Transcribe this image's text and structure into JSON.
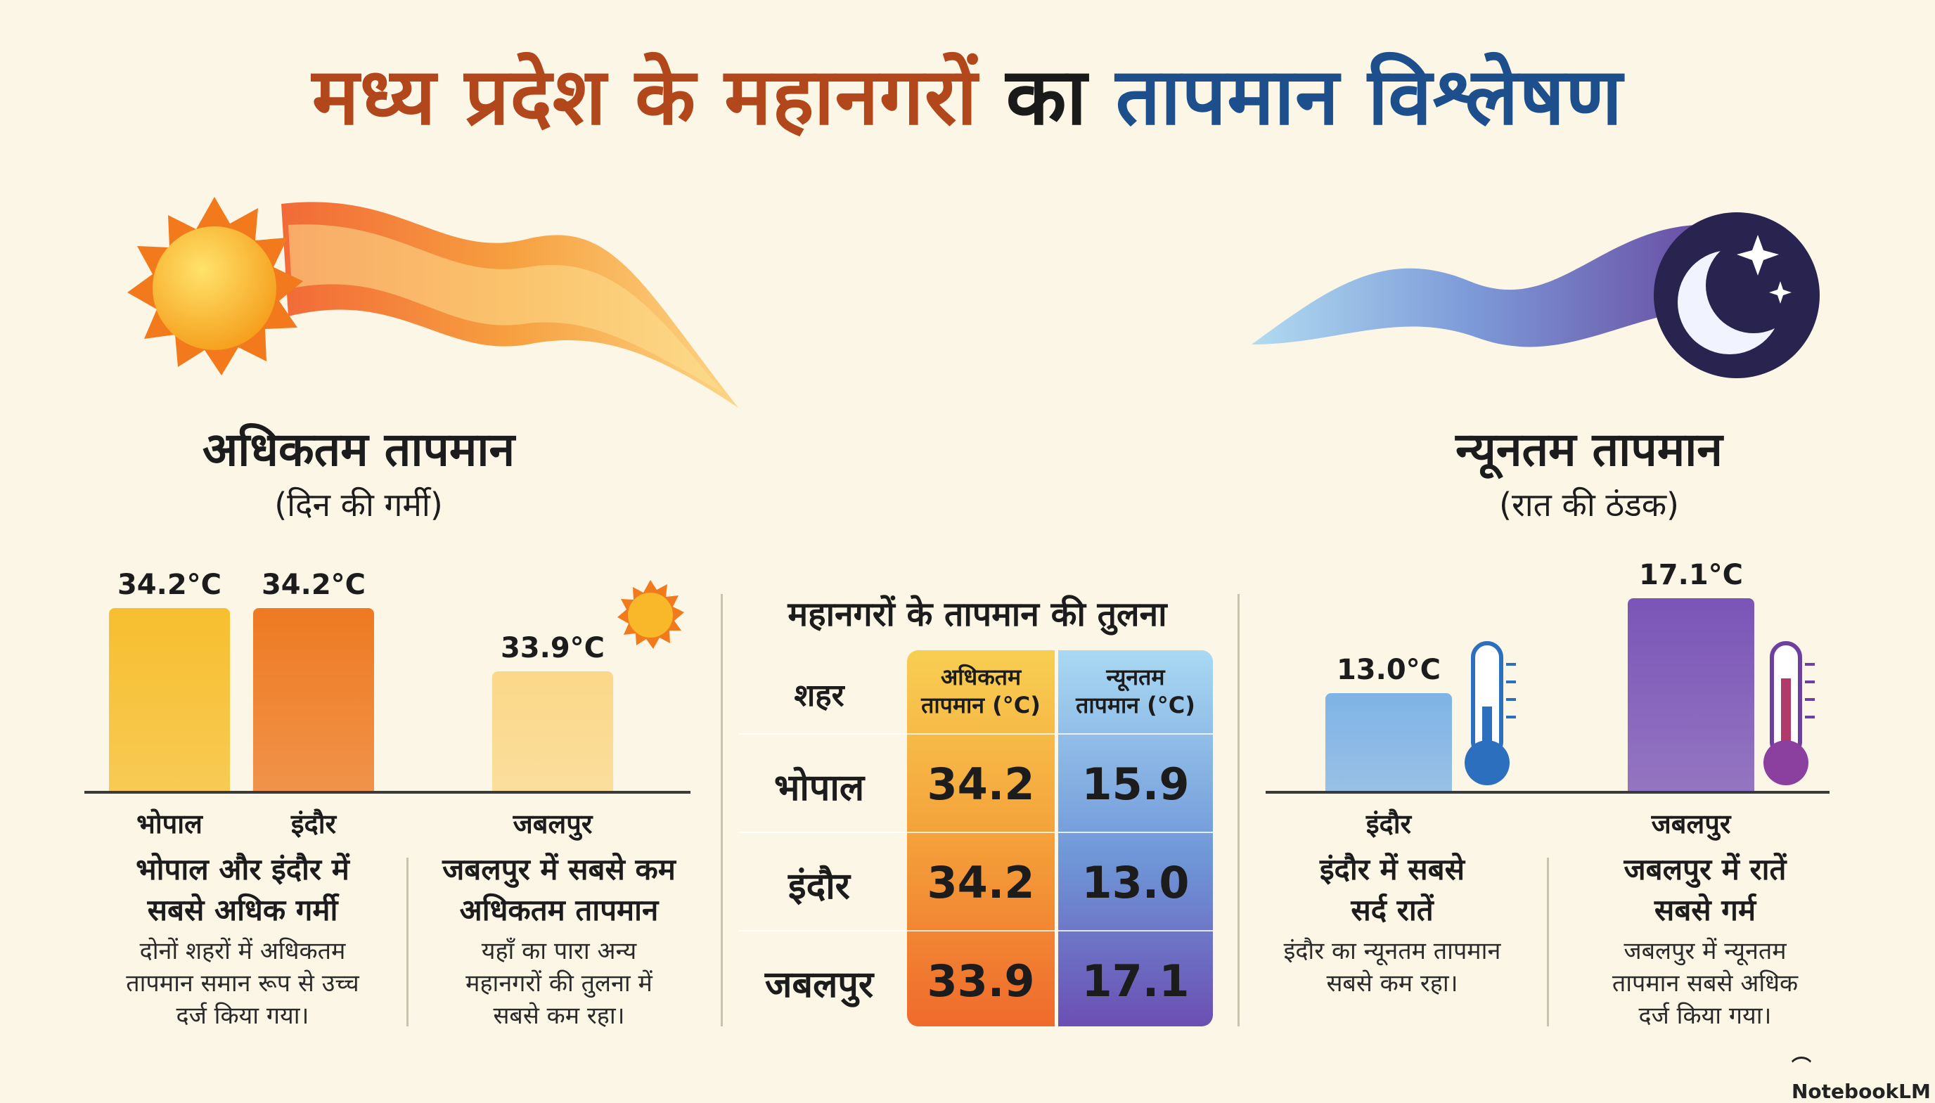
{
  "title": {
    "part1": "मध्य प्रदेश के महानगरों",
    "part2": "का",
    "part3": "तापमान विश्लेषण"
  },
  "max_section": {
    "heading": "अधिकतम तापमान",
    "subheading": "(दिन की गर्मी)"
  },
  "min_section": {
    "heading": "न्यूनतम तापमान",
    "subheading": "(रात की ठंडक)"
  },
  "chart_data": [
    {
      "type": "bar",
      "title": "अधिकतम तापमान",
      "subtitle": "(दिन की गर्मी)",
      "categories": [
        "भोपाल",
        "इंदौर",
        "जबलपुर"
      ],
      "values": [
        34.2,
        34.2,
        33.9
      ],
      "value_labels": [
        "34.2°C",
        "34.2°C",
        "33.9°C"
      ],
      "unit": "°C",
      "colors": [
        "#f7bf2f",
        "#ee7a22",
        "#fbd889"
      ]
    },
    {
      "type": "bar",
      "title": "न्यूनतम तापमान",
      "subtitle": "(रात की ठंडक)",
      "categories": [
        "इंदौर",
        "जबलपुर"
      ],
      "values": [
        13.0,
        17.1
      ],
      "value_labels": [
        "13.0°C",
        "17.1°C"
      ],
      "unit": "°C",
      "colors": [
        "#7fb3e6",
        "#7a55b8"
      ]
    },
    {
      "type": "table",
      "title": "महानगरों के तापमान की तुलना",
      "columns": [
        "शहर",
        "अधिकतम तापमान (°C)",
        "न्यूनतम तापमान (°C)"
      ],
      "rows": [
        {
          "city": "भोपाल",
          "max": "34.2",
          "min": "15.9"
        },
        {
          "city": "इंदौर",
          "max": "34.2",
          "min": "13.0"
        },
        {
          "city": "जबलपुर",
          "max": "33.9",
          "min": "17.1"
        }
      ]
    }
  ],
  "table": {
    "col_city": "शहर",
    "col_max_l1": "अधिकतम",
    "col_max_l2": "तापमान (°C)",
    "col_min_l1": "न्यूनतम",
    "col_min_l2": "तापमान (°C)"
  },
  "max_notes": [
    {
      "headline_l1": "भोपाल और इंदौर में",
      "headline_l2": "सबसे अधिक गर्मी",
      "desc_l1": "दोनों शहरों में अधिकतम",
      "desc_l2": "तापमान समान रूप से उच्च",
      "desc_l3": "दर्ज किया गया।"
    },
    {
      "headline_l1": "जबलपुर में सबसे कम",
      "headline_l2": "अधिकतम तापमान",
      "desc_l1": "यहाँ का पारा अन्य",
      "desc_l2": "महानगरों की तुलना में",
      "desc_l3": "सबसे कम रहा।"
    }
  ],
  "min_notes": [
    {
      "headline_l1": "इंदौर में सबसे",
      "headline_l2": "सर्द रातें",
      "desc_l1": "इंदौर का न्यूनतम तापमान",
      "desc_l2": "सबसे कम रहा।",
      "desc_l3": ""
    },
    {
      "headline_l1": "जबलपुर में रातें",
      "headline_l2": "सबसे गर्म",
      "desc_l1": "जबलपुर में न्यूनतम",
      "desc_l2": "तापमान सबसे अधिक",
      "desc_l3": "दर्ज किया गया।"
    }
  ],
  "brand": "NotebookLM",
  "icons": [
    "sun-icon",
    "heat-wave-icon",
    "moon-icon",
    "star-icon",
    "thermometer-icon",
    "city-skyline-icon"
  ]
}
